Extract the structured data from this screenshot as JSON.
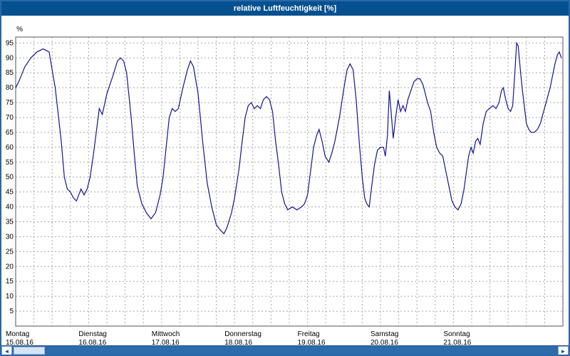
{
  "window": {
    "title": "relative Luftfeuchtigkeit [%]"
  },
  "scrollbar": {
    "left_arrow": "◄",
    "right_arrow": "►"
  },
  "chart_data": {
    "type": "line",
    "title": "relative Luftfeuchtigkeit [%]",
    "xlabel": "",
    "ylabel": "%",
    "ylim": [
      0,
      97
    ],
    "yticks": [
      5,
      10,
      15,
      20,
      25,
      30,
      35,
      40,
      45,
      50,
      55,
      60,
      65,
      70,
      75,
      80,
      85,
      90,
      95
    ],
    "grid": "dashed",
    "legend": "none",
    "line_color": "#15158f",
    "x_unit": "hours",
    "hours_visible": 180,
    "x_tick_interval_hours": 6,
    "x_days": [
      {
        "name": "Montag",
        "date": "15.08.16"
      },
      {
        "name": "Dienstag",
        "date": "16.08.16"
      },
      {
        "name": "Mittwoch",
        "date": "17.08.16"
      },
      {
        "name": "Donnerstag",
        "date": "18.08.16"
      },
      {
        "name": "Freitag",
        "date": "19.08.16"
      },
      {
        "name": "Samstag",
        "date": "20.08.16"
      },
      {
        "name": "Sonntag",
        "date": "21.08.16"
      }
    ],
    "points": [
      [
        0,
        80
      ],
      [
        1,
        82
      ],
      [
        3,
        87
      ],
      [
        5,
        90
      ],
      [
        7,
        92
      ],
      [
        9,
        93
      ],
      [
        11,
        92
      ],
      [
        13,
        80
      ],
      [
        15,
        62
      ],
      [
        16,
        50
      ],
      [
        17,
        46
      ],
      [
        18,
        45
      ],
      [
        19,
        43
      ],
      [
        20,
        42
      ],
      [
        21.5,
        46
      ],
      [
        22.5,
        44
      ],
      [
        23.5,
        46
      ],
      [
        24.5,
        50
      ],
      [
        25.5,
        57
      ],
      [
        26.5,
        65
      ],
      [
        27.5,
        73
      ],
      [
        28.5,
        71
      ],
      [
        30,
        78
      ],
      [
        32,
        84
      ],
      [
        33.5,
        89
      ],
      [
        34.5,
        90
      ],
      [
        35.5,
        89
      ],
      [
        36.5,
        85
      ],
      [
        38,
        70
      ],
      [
        39,
        58
      ],
      [
        40,
        47
      ],
      [
        41.5,
        41
      ],
      [
        43,
        38
      ],
      [
        44.5,
        36
      ],
      [
        46,
        38
      ],
      [
        47.5,
        44
      ],
      [
        48.5,
        50
      ],
      [
        49.5,
        60
      ],
      [
        50.5,
        70
      ],
      [
        51.5,
        73
      ],
      [
        52.5,
        72
      ],
      [
        53.5,
        73
      ],
      [
        55,
        80
      ],
      [
        56.5,
        86
      ],
      [
        57.5,
        89
      ],
      [
        58.5,
        87
      ],
      [
        60,
        78
      ],
      [
        61.5,
        62
      ],
      [
        63,
        48
      ],
      [
        64.5,
        40
      ],
      [
        66,
        34
      ],
      [
        67.5,
        32
      ],
      [
        68.5,
        31
      ],
      [
        69.5,
        33
      ],
      [
        71,
        38
      ],
      [
        72,
        43
      ],
      [
        73.5,
        53
      ],
      [
        74.5,
        62
      ],
      [
        75.5,
        70
      ],
      [
        76.5,
        74
      ],
      [
        77.5,
        75
      ],
      [
        78.5,
        73
      ],
      [
        79.5,
        74
      ],
      [
        80.5,
        73
      ],
      [
        81.5,
        76
      ],
      [
        82.5,
        77
      ],
      [
        83.5,
        76
      ],
      [
        84.5,
        72
      ],
      [
        85.5,
        62
      ],
      [
        86.5,
        54
      ],
      [
        87.5,
        45
      ],
      [
        88.5,
        41
      ],
      [
        89.5,
        39
      ],
      [
        91,
        40
      ],
      [
        92.5,
        39
      ],
      [
        94,
        40
      ],
      [
        95,
        41
      ],
      [
        96,
        44
      ],
      [
        97,
        52
      ],
      [
        98,
        60
      ],
      [
        99,
        64
      ],
      [
        99.8,
        66
      ],
      [
        100.8,
        62
      ],
      [
        101.8,
        57
      ],
      [
        103,
        55
      ],
      [
        104,
        58
      ],
      [
        105,
        62
      ],
      [
        106.5,
        70
      ],
      [
        108,
        80
      ],
      [
        109,
        86
      ],
      [
        110,
        88
      ],
      [
        111,
        86
      ],
      [
        112,
        76
      ],
      [
        113,
        62
      ],
      [
        114,
        50
      ],
      [
        114.8,
        43
      ],
      [
        115.5,
        41
      ],
      [
        116.3,
        40
      ],
      [
        117,
        46
      ],
      [
        118,
        54
      ],
      [
        119,
        59
      ],
      [
        120,
        60
      ],
      [
        121,
        60
      ],
      [
        121.6,
        57
      ],
      [
        122.3,
        64
      ],
      [
        122.9,
        79
      ],
      [
        123.5,
        72
      ],
      [
        124.2,
        63
      ],
      [
        125,
        70
      ],
      [
        125.8,
        76
      ],
      [
        126.6,
        72
      ],
      [
        127.4,
        74
      ],
      [
        128.2,
        72
      ],
      [
        129,
        76
      ],
      [
        130,
        79
      ],
      [
        131,
        82
      ],
      [
        132,
        83
      ],
      [
        133,
        83
      ],
      [
        134,
        81
      ],
      [
        135.5,
        75
      ],
      [
        136.5,
        72
      ],
      [
        137.5,
        65
      ],
      [
        138.5,
        60
      ],
      [
        139.5,
        58
      ],
      [
        140.5,
        57
      ],
      [
        141.5,
        52
      ],
      [
        142.5,
        47
      ],
      [
        143.5,
        42
      ],
      [
        144.5,
        40
      ],
      [
        145.5,
        39
      ],
      [
        146.5,
        41
      ],
      [
        147.5,
        46
      ],
      [
        148.3,
        52
      ],
      [
        149,
        57
      ],
      [
        149.8,
        60
      ],
      [
        150.5,
        58
      ],
      [
        151.3,
        62
      ],
      [
        152,
        63
      ],
      [
        152.8,
        61
      ],
      [
        153.8,
        68
      ],
      [
        154.8,
        72
      ],
      [
        155.8,
        73
      ],
      [
        157,
        74
      ],
      [
        158,
        73
      ],
      [
        159,
        75
      ],
      [
        159.8,
        79
      ],
      [
        160.4,
        80
      ],
      [
        161.2,
        76
      ],
      [
        162,
        73
      ],
      [
        162.8,
        72
      ],
      [
        163.5,
        74
      ],
      [
        164.2,
        85
      ],
      [
        164.8,
        95
      ],
      [
        165.3,
        94
      ],
      [
        166,
        86
      ],
      [
        166.6,
        80
      ],
      [
        167.3,
        74
      ],
      [
        168,
        68
      ],
      [
        168.8,
        66
      ],
      [
        169.6,
        65
      ],
      [
        170.6,
        65
      ],
      [
        171.6,
        66
      ],
      [
        172.6,
        68
      ],
      [
        173.4,
        71
      ],
      [
        174.2,
        74
      ],
      [
        175,
        77
      ],
      [
        175.8,
        80
      ],
      [
        176.6,
        84
      ],
      [
        177.4,
        88
      ],
      [
        178.2,
        91
      ],
      [
        178.8,
        92
      ],
      [
        179.5,
        90
      ]
    ]
  }
}
